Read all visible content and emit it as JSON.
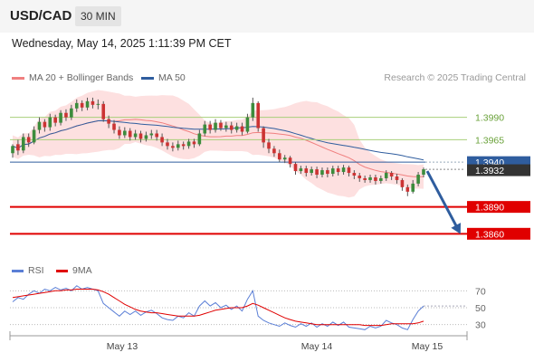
{
  "header": {
    "symbol": "USD/CAD",
    "timeframe": "30 MIN",
    "datetime": "Wednesday, May 14, 2025 1:11:39 PM CET"
  },
  "legend": {
    "ma20_label": "MA 20 + Bollinger Bands",
    "ma20_color": "#f08080",
    "ma50_label": "MA 50",
    "ma50_color": "#2f5d9e",
    "credit": "Research © 2025 Trading Central"
  },
  "rsi_legend": {
    "rsi_label": "RSI",
    "rsi_color": "#5b7fd6",
    "ma_label": "9MA",
    "ma_color": "#e00000"
  },
  "chart_data": {
    "type": "candlestick",
    "x_labels": [
      "May 13",
      "May 14",
      "May 15"
    ],
    "ylim": [
      1.383,
      1.402
    ],
    "levels": [
      {
        "value": "1.3990",
        "kind": "resistance",
        "color": "#a8cf7a",
        "text_color": "#6aa23a"
      },
      {
        "value": "1.3965",
        "kind": "resistance",
        "color": "#a8cf7a",
        "text_color": "#6aa23a"
      },
      {
        "value": "1.3940",
        "kind": "ma50",
        "color": "#2f5d9e",
        "text_color": "#ffffff"
      },
      {
        "value": "1.3932",
        "kind": "last_price",
        "color": "#333333",
        "text_color": "#ffffff"
      },
      {
        "value": "1.3890",
        "kind": "support",
        "color": "#e00000",
        "text_color": "#ffffff"
      },
      {
        "value": "1.3860",
        "kind": "support",
        "color": "#e00000",
        "text_color": "#ffffff"
      }
    ],
    "forecast": {
      "from": 1.393,
      "to": 1.386,
      "color": "#2f5d9e"
    },
    "candles": [
      [
        1.395,
        1.3958,
        1.3945,
        1.396
      ],
      [
        1.396,
        1.3953,
        1.3948,
        1.3965
      ],
      [
        1.3953,
        1.3968,
        1.395,
        1.3972
      ],
      [
        1.3968,
        1.3962,
        1.3957,
        1.3972
      ],
      [
        1.3962,
        1.3976,
        1.396,
        1.398
      ],
      [
        1.3976,
        1.3985,
        1.3972,
        1.399
      ],
      [
        1.3985,
        1.3979,
        1.3974,
        1.3988
      ],
      [
        1.3979,
        1.399,
        1.3975,
        1.3994
      ],
      [
        1.399,
        1.3984,
        1.398,
        1.3993
      ],
      [
        1.3984,
        1.3995,
        1.3981,
        1.3998
      ],
      [
        1.3995,
        1.399,
        1.3986,
        1.3999
      ],
      [
        1.399,
        1.4,
        1.3987,
        1.4004
      ],
      [
        1.4,
        1.4006,
        1.3996,
        1.401
      ],
      [
        1.4006,
        1.4001,
        1.3997,
        1.4009
      ],
      [
        1.4001,
        1.4008,
        1.3998,
        1.4012
      ],
      [
        1.4008,
        1.4004,
        1.4,
        1.4012
      ],
      [
        1.4004,
        1.4005,
        1.3999,
        1.401
      ],
      [
        1.4005,
        1.3988,
        1.3985,
        1.4008
      ],
      [
        1.3988,
        1.3983,
        1.3978,
        1.3992
      ],
      [
        1.3983,
        1.3976,
        1.3972,
        1.3987
      ],
      [
        1.3976,
        1.397,
        1.3966,
        1.398
      ],
      [
        1.397,
        1.3975,
        1.3967,
        1.3979
      ],
      [
        1.3975,
        1.3968,
        1.3964,
        1.3978
      ],
      [
        1.3968,
        1.3972,
        1.3965,
        1.3976
      ],
      [
        1.3972,
        1.3966,
        1.3962,
        1.3975
      ],
      [
        1.3966,
        1.397,
        1.3963,
        1.3974
      ],
      [
        1.397,
        1.3972,
        1.3966,
        1.3976
      ],
      [
        1.3972,
        1.3968,
        1.3964,
        1.3976
      ],
      [
        1.3968,
        1.3962,
        1.3958,
        1.3972
      ],
      [
        1.3962,
        1.3958,
        1.3954,
        1.3966
      ],
      [
        1.3958,
        1.3956,
        1.3952,
        1.3962
      ],
      [
        1.3956,
        1.396,
        1.3953,
        1.3964
      ],
      [
        1.396,
        1.3958,
        1.3954,
        1.3963
      ],
      [
        1.3958,
        1.3963,
        1.3955,
        1.3966
      ],
      [
        1.3963,
        1.396,
        1.3956,
        1.3966
      ],
      [
        1.396,
        1.3972,
        1.3958,
        1.3976
      ],
      [
        1.3972,
        1.3982,
        1.3969,
        1.3986
      ],
      [
        1.3982,
        1.3976,
        1.3972,
        1.3986
      ],
      [
        1.3976,
        1.3984,
        1.3973,
        1.3988
      ],
      [
        1.3984,
        1.3978,
        1.3975,
        1.3987
      ],
      [
        1.3978,
        1.3981,
        1.3974,
        1.3985
      ],
      [
        1.3981,
        1.3976,
        1.3972,
        1.3985
      ],
      [
        1.3976,
        1.398,
        1.3973,
        1.3984
      ],
      [
        1.398,
        1.3974,
        1.397,
        1.3984
      ],
      [
        1.3974,
        1.399,
        1.3972,
        1.3994
      ],
      [
        1.399,
        1.4006,
        1.3986,
        1.4012
      ],
      [
        1.4006,
        1.3978,
        1.3974,
        1.4008
      ],
      [
        1.3978,
        1.3962,
        1.3956,
        1.398
      ],
      [
        1.3962,
        1.3955,
        1.395,
        1.3966
      ],
      [
        1.3955,
        1.395,
        1.3946,
        1.3958
      ],
      [
        1.395,
        1.3943,
        1.394,
        1.3954
      ],
      [
        1.3943,
        1.3945,
        1.3939,
        1.3948
      ],
      [
        1.3945,
        1.3938,
        1.3934,
        1.3947
      ],
      [
        1.3938,
        1.393,
        1.3926,
        1.394
      ],
      [
        1.393,
        1.3933,
        1.3927,
        1.3936
      ],
      [
        1.3933,
        1.3928,
        1.3924,
        1.3936
      ],
      [
        1.3928,
        1.3932,
        1.3925,
        1.3935
      ],
      [
        1.3932,
        1.3926,
        1.3922,
        1.3935
      ],
      [
        1.3926,
        1.3931,
        1.3923,
        1.3934
      ],
      [
        1.3931,
        1.3927,
        1.3923,
        1.3934
      ],
      [
        1.3927,
        1.3933,
        1.3924,
        1.3936
      ],
      [
        1.3933,
        1.3929,
        1.3925,
        1.3936
      ],
      [
        1.3929,
        1.3934,
        1.3926,
        1.3937
      ],
      [
        1.3934,
        1.3928,
        1.3924,
        1.3936
      ],
      [
        1.3928,
        1.3925,
        1.3921,
        1.3931
      ],
      [
        1.3925,
        1.3922,
        1.3918,
        1.3928
      ],
      [
        1.3922,
        1.392,
        1.3917,
        1.3925
      ],
      [
        1.392,
        1.3923,
        1.3917,
        1.3926
      ],
      [
        1.3923,
        1.3919,
        1.3915,
        1.3926
      ],
      [
        1.3919,
        1.3922,
        1.3916,
        1.3925
      ],
      [
        1.3922,
        1.3928,
        1.3919,
        1.3931
      ],
      [
        1.3928,
        1.3924,
        1.392,
        1.393
      ],
      [
        1.3924,
        1.392,
        1.3916,
        1.3927
      ],
      [
        1.392,
        1.3912,
        1.3908,
        1.3922
      ],
      [
        1.3912,
        1.3907,
        1.3902,
        1.3915
      ],
      [
        1.3907,
        1.3916,
        1.3905,
        1.392
      ],
      [
        1.3916,
        1.3926,
        1.3913,
        1.3929
      ],
      [
        1.3926,
        1.3932,
        1.3923,
        1.3934
      ]
    ],
    "rsi": {
      "ylim": [
        20,
        80
      ],
      "ticks": [
        "70",
        "50",
        "30"
      ],
      "rsi_values": [
        57,
        62,
        60,
        66,
        70,
        67,
        72,
        70,
        74,
        71,
        73,
        70,
        76,
        72,
        74,
        72,
        70,
        55,
        50,
        45,
        40,
        46,
        42,
        46,
        41,
        45,
        47,
        43,
        38,
        36,
        35,
        40,
        38,
        44,
        40,
        52,
        58,
        52,
        56,
        50,
        53,
        48,
        52,
        46,
        60,
        70,
        40,
        35,
        32,
        30,
        28,
        32,
        29,
        27,
        31,
        28,
        32,
        27,
        31,
        28,
        33,
        29,
        33,
        27,
        26,
        25,
        24,
        28,
        26,
        28,
        35,
        32,
        30,
        26,
        24,
        36,
        46,
        52
      ],
      "ma_values": [
        62,
        63,
        64,
        65,
        66,
        67,
        68,
        69,
        70,
        70,
        71,
        71,
        72,
        72,
        72,
        72,
        71,
        69,
        66,
        62,
        58,
        54,
        51,
        48,
        46,
        45,
        44,
        44,
        43,
        42,
        41,
        40,
        40,
        40,
        40,
        41,
        43,
        45,
        47,
        48,
        49,
        50,
        50,
        50,
        52,
        55,
        53,
        50,
        47,
        44,
        41,
        38,
        36,
        34,
        33,
        32,
        31,
        30,
        30,
        30,
        30,
        30,
        30,
        30,
        30,
        30,
        29,
        29,
        29,
        29,
        30,
        31,
        31,
        31,
        31,
        31,
        32,
        34
      ]
    }
  },
  "axis_labels": {
    "price_1_3990": "1.3990",
    "price_1_3965": "1.3965",
    "price_1_3940": "1.3940",
    "price_1_3932": "1.3932",
    "price_1_3890": "1.3890",
    "price_1_3860": "1.3860"
  }
}
